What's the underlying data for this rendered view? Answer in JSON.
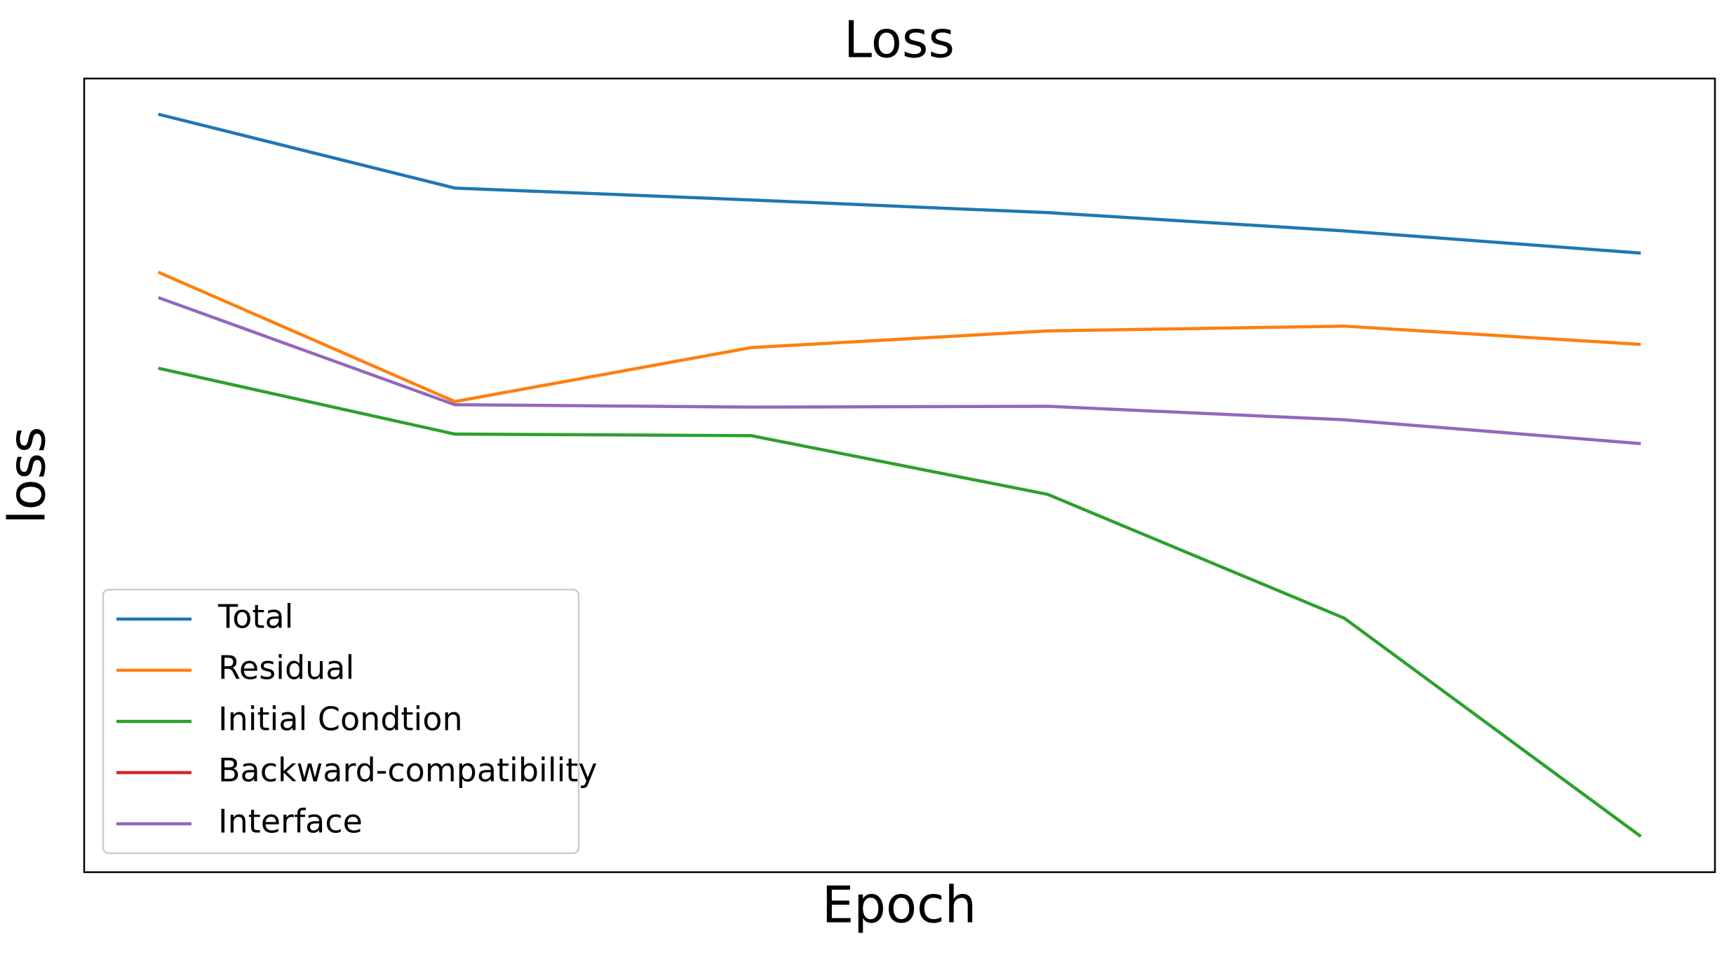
{
  "chart_data": {
    "type": "line",
    "title": "Loss",
    "xlabel": "Epoch",
    "ylabel": "loss",
    "x": [
      0,
      1,
      2,
      3,
      4,
      5
    ],
    "xlim": [
      -0.25,
      5.25
    ],
    "ylim": [
      0,
      1
    ],
    "legend": "lower left",
    "series": [
      {
        "name": "Total",
        "color": "#1f77b4",
        "values": [
          0.955,
          0.862,
          0.847,
          0.831,
          0.808,
          0.78
        ]
      },
      {
        "name": "Residual",
        "color": "#ff7f0e",
        "values": [
          0.756,
          0.593,
          0.661,
          0.682,
          0.688,
          0.665
        ]
      },
      {
        "name": "Initial Condtion",
        "color": "#2ca02c",
        "values": [
          0.635,
          0.552,
          0.55,
          0.476,
          0.32,
          0.045
        ]
      },
      {
        "name": "Backward-compatibility",
        "color": "#d62728",
        "values": [
          null,
          null,
          null,
          null,
          null,
          null
        ]
      },
      {
        "name": "Interface",
        "color": "#9467bd",
        "values": [
          0.724,
          0.589,
          0.586,
          0.587,
          0.57,
          0.54
        ]
      }
    ]
  }
}
